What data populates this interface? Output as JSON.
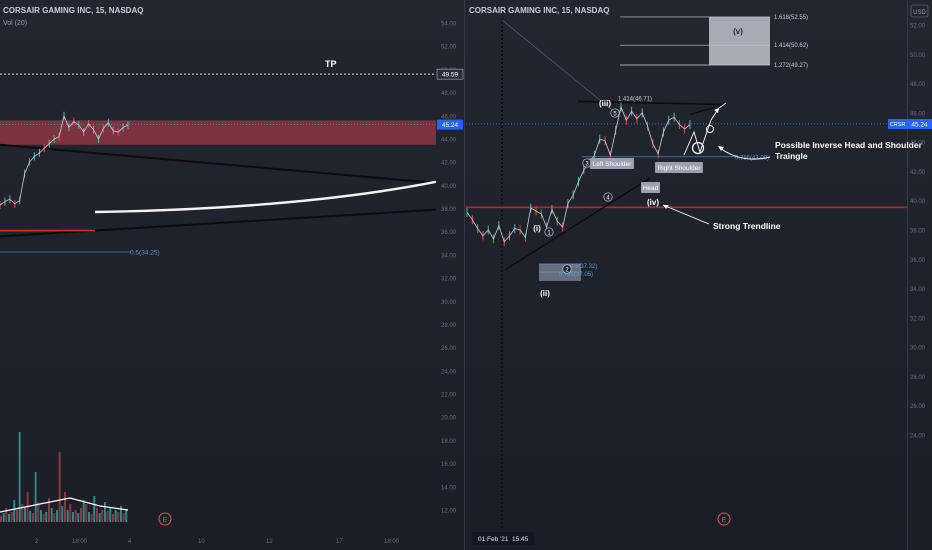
{
  "left_panel": {
    "title": "CORSAIR GAMING INC, 15, NASDAQ",
    "volume_label": "Vol (20)",
    "tp_label": "TP",
    "price_badges": [
      "49.59",
      "45.24"
    ],
    "fib_label": "0.5(34.25)",
    "earnings_marker": "E",
    "x_axis_labels": [
      "2",
      "18:00",
      "4",
      "10",
      "12",
      "17",
      "18:00"
    ]
  },
  "right_panel": {
    "title": "CORSAIR GAMING INC, 15, NASDAQ",
    "currency": "USD",
    "symbol_badge": "CRSR",
    "last_price": "45.24",
    "date_label": "01 Feb '21",
    "time_label": "15:45",
    "earnings_marker": "E",
    "wave_labels": [
      "(i)",
      "(ii)",
      "(iii)",
      "(iv)",
      "(v)"
    ],
    "circle_labels": [
      "1",
      "2",
      "3",
      "4",
      "5"
    ],
    "pattern_labels": [
      "Left Shoulder",
      "Head",
      "Right Shoulder"
    ],
    "fib_labels": [
      "1.618(52.55)",
      "1.414(50.62)",
      "1.272(49.27)",
      "1.414(46.71)",
      "0.786(43.00)",
      "0.5(37.32)",
      "0.786(37.05)"
    ],
    "annotations": [
      "Possible Inverse Head and Shoulder",
      "Traingle",
      "Strong Trendline"
    ]
  },
  "chart_data": [
    {
      "type": "line",
      "title": "CORSAIR GAMING INC, 15, NASDAQ",
      "xlabel": "",
      "ylabel": "",
      "y_ticks": [
        54,
        52,
        50,
        48,
        46,
        44,
        42,
        40,
        38,
        36,
        34,
        32,
        30,
        28,
        26,
        24,
        22,
        20,
        18,
        16,
        14,
        12
      ],
      "ylim": [
        11,
        55.5
      ],
      "series": [
        {
          "values": [
            38.3,
            38.6,
            38.8,
            38.4,
            38.7,
            41,
            42,
            42.5,
            42.8,
            43.2,
            43.6,
            44,
            44.2,
            46,
            45,
            45.5,
            45.2,
            44.6,
            45.3,
            44.8,
            44,
            44.9,
            45.4,
            44.7,
            44.6,
            45,
            45.2
          ]
        }
      ],
      "levels": {
        "tp": 49.59,
        "last": 45.24,
        "resistance_zone": [
          43.5,
          45.6
        ],
        "fib_0_5": 34.25
      }
    },
    {
      "type": "line",
      "title": "CORSAIR GAMING INC, 15, NASDAQ",
      "xlabel": "",
      "ylabel": "",
      "y_ticks": [
        52,
        50,
        48,
        46,
        44,
        42,
        40,
        38,
        36,
        34,
        32,
        30,
        28,
        26,
        24
      ],
      "ylim": [
        22,
        53.5
      ],
      "series": [
        {
          "values": [
            39.2,
            38.7,
            38.1,
            37.6,
            38,
            37.4,
            38.3,
            37.2,
            37.6,
            38.1,
            38,
            37.5,
            39.5,
            39.3,
            39.1,
            38.2,
            39.4,
            38.6,
            38.2,
            39.8,
            40.4,
            41.3,
            42.1,
            42.6,
            43.1,
            44.2,
            44.1,
            43.1,
            44.8,
            46.4,
            45.5,
            46.1,
            45.6,
            46,
            45.1,
            43.9,
            43.2,
            44.7,
            45.5,
            45.7,
            45.2,
            44.9,
            45.2
          ]
        }
      ],
      "levels": {
        "last": 45.24,
        "support": 39.55,
        "fib_1_618": 52.55,
        "fib_1_414": 50.62,
        "fib_1_272": 49.27,
        "fib_1_414_lower": 46.71,
        "fib_0_786": 43.0
      }
    }
  ]
}
